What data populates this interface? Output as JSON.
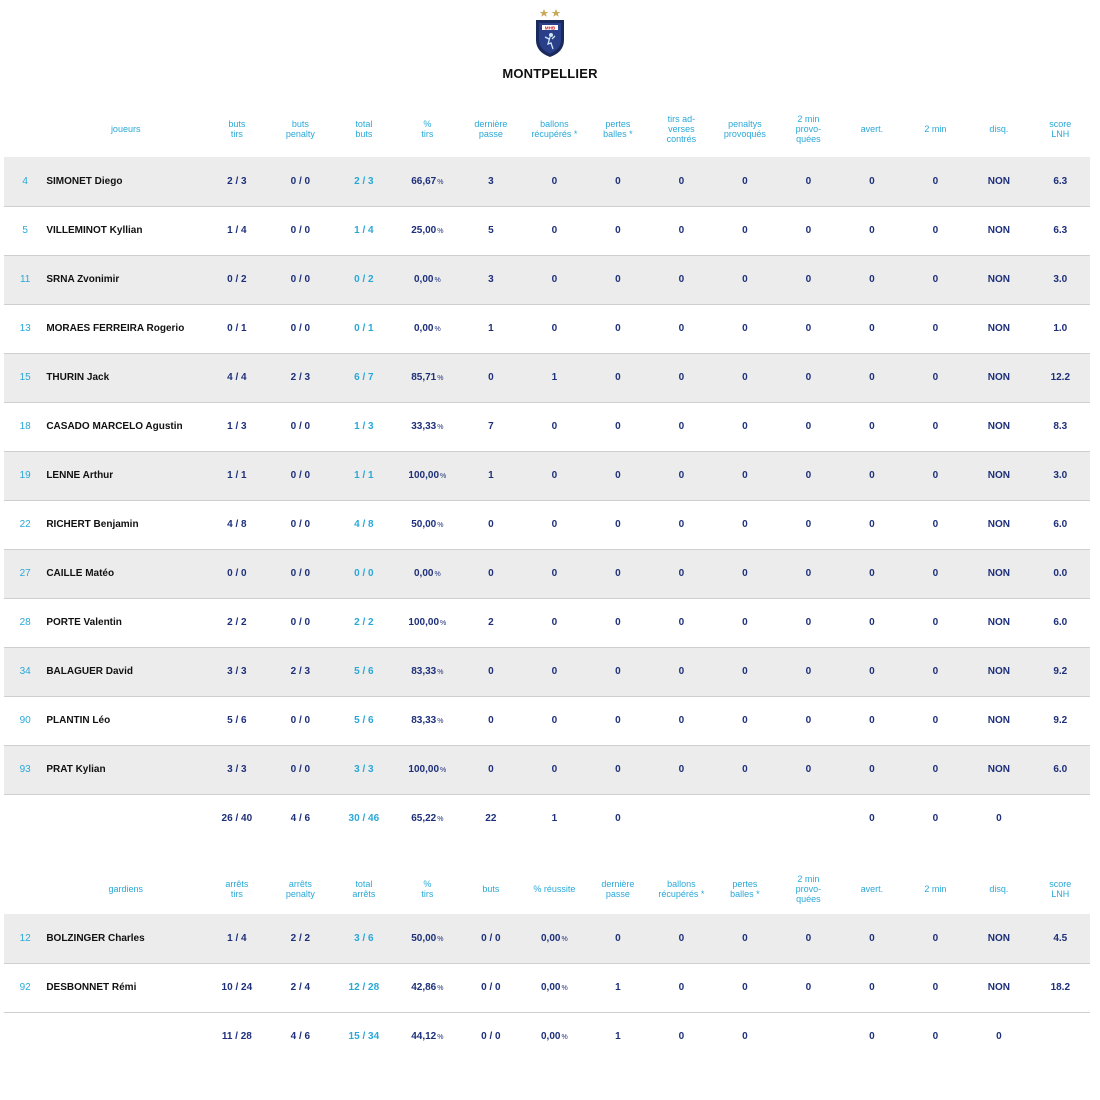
{
  "team": {
    "name": "MONTPELLIER",
    "logo_text": "MHB",
    "colors": {
      "navy": "#1b2a5c",
      "accent_blue": "#29a8d8",
      "row_alt": "#ececec",
      "star": "#c9a95c"
    }
  },
  "players": {
    "headers": [
      "joueurs",
      "buts\ntirs",
      "buts\npenalty",
      "total\nbuts",
      "%\ntirs",
      "dernière\npasse",
      "ballons\nrécupérés *",
      "pertes\nballes *",
      "tirs ad-\nverses\ncontrés",
      "penaltys\nprovoqués",
      "2 min\nprovo-\nquées",
      "avert.",
      "2 min",
      "disq.",
      "score\nLNH"
    ],
    "rows": [
      {
        "num": "4",
        "name": "SIMONET Diego",
        "buts_tirs": "2 / 3",
        "penalty": "0 / 0",
        "total": "2 / 3",
        "pct": "66,67",
        "dp": "3",
        "br": "0",
        "pb": "0",
        "tac": "0",
        "pp": "0",
        "mp": "0",
        "avert": "0",
        "two": "0",
        "disq": "NON",
        "score": "6.3"
      },
      {
        "num": "5",
        "name": "VILLEMINOT Kyllian",
        "buts_tirs": "1 / 4",
        "penalty": "0 / 0",
        "total": "1 / 4",
        "pct": "25,00",
        "dp": "5",
        "br": "0",
        "pb": "0",
        "tac": "0",
        "pp": "0",
        "mp": "0",
        "avert": "0",
        "two": "0",
        "disq": "NON",
        "score": "6.3"
      },
      {
        "num": "11",
        "name": "SRNA Zvonimir",
        "buts_tirs": "0 / 2",
        "penalty": "0 / 0",
        "total": "0 / 2",
        "pct": "0,00",
        "dp": "3",
        "br": "0",
        "pb": "0",
        "tac": "0",
        "pp": "0",
        "mp": "0",
        "avert": "0",
        "two": "0",
        "disq": "NON",
        "score": "3.0"
      },
      {
        "num": "13",
        "name": "MORAES FERREIRA Rogerio",
        "buts_tirs": "0 / 1",
        "penalty": "0 / 0",
        "total": "0 / 1",
        "pct": "0,00",
        "dp": "1",
        "br": "0",
        "pb": "0",
        "tac": "0",
        "pp": "0",
        "mp": "0",
        "avert": "0",
        "two": "0",
        "disq": "NON",
        "score": "1.0"
      },
      {
        "num": "15",
        "name": "THURIN Jack",
        "buts_tirs": "4 / 4",
        "penalty": "2 / 3",
        "total": "6 / 7",
        "pct": "85,71",
        "dp": "0",
        "br": "1",
        "pb": "0",
        "tac": "0",
        "pp": "0",
        "mp": "0",
        "avert": "0",
        "two": "0",
        "disq": "NON",
        "score": "12.2"
      },
      {
        "num": "18",
        "name": "CASADO MARCELO Agustin",
        "buts_tirs": "1 / 3",
        "penalty": "0 / 0",
        "total": "1 / 3",
        "pct": "33,33",
        "dp": "7",
        "br": "0",
        "pb": "0",
        "tac": "0",
        "pp": "0",
        "mp": "0",
        "avert": "0",
        "two": "0",
        "disq": "NON",
        "score": "8.3"
      },
      {
        "num": "19",
        "name": "LENNE Arthur",
        "buts_tirs": "1 / 1",
        "penalty": "0 / 0",
        "total": "1 / 1",
        "pct": "100,00",
        "dp": "1",
        "br": "0",
        "pb": "0",
        "tac": "0",
        "pp": "0",
        "mp": "0",
        "avert": "0",
        "two": "0",
        "disq": "NON",
        "score": "3.0"
      },
      {
        "num": "22",
        "name": "RICHERT Benjamin",
        "buts_tirs": "4 / 8",
        "penalty": "0 / 0",
        "total": "4 / 8",
        "pct": "50,00",
        "dp": "0",
        "br": "0",
        "pb": "0",
        "tac": "0",
        "pp": "0",
        "mp": "0",
        "avert": "0",
        "two": "0",
        "disq": "NON",
        "score": "6.0"
      },
      {
        "num": "27",
        "name": "CAILLE Matéo",
        "buts_tirs": "0 / 0",
        "penalty": "0 / 0",
        "total": "0 / 0",
        "pct": "0,00",
        "dp": "0",
        "br": "0",
        "pb": "0",
        "tac": "0",
        "pp": "0",
        "mp": "0",
        "avert": "0",
        "two": "0",
        "disq": "NON",
        "score": "0.0"
      },
      {
        "num": "28",
        "name": "PORTE Valentin",
        "buts_tirs": "2 / 2",
        "penalty": "0 / 0",
        "total": "2 / 2",
        "pct": "100,00",
        "dp": "2",
        "br": "0",
        "pb": "0",
        "tac": "0",
        "pp": "0",
        "mp": "0",
        "avert": "0",
        "two": "0",
        "disq": "NON",
        "score": "6.0"
      },
      {
        "num": "34",
        "name": "BALAGUER David",
        "buts_tirs": "3 / 3",
        "penalty": "2 / 3",
        "total": "5 / 6",
        "pct": "83,33",
        "dp": "0",
        "br": "0",
        "pb": "0",
        "tac": "0",
        "pp": "0",
        "mp": "0",
        "avert": "0",
        "two": "0",
        "disq": "NON",
        "score": "9.2"
      },
      {
        "num": "90",
        "name": "PLANTIN Léo",
        "buts_tirs": "5 / 6",
        "penalty": "0 / 0",
        "total": "5 / 6",
        "pct": "83,33",
        "dp": "0",
        "br": "0",
        "pb": "0",
        "tac": "0",
        "pp": "0",
        "mp": "0",
        "avert": "0",
        "two": "0",
        "disq": "NON",
        "score": "9.2"
      },
      {
        "num": "93",
        "name": "PRAT Kylian",
        "buts_tirs": "3 / 3",
        "penalty": "0 / 0",
        "total": "3 / 3",
        "pct": "100,00",
        "dp": "0",
        "br": "0",
        "pb": "0",
        "tac": "0",
        "pp": "0",
        "mp": "0",
        "avert": "0",
        "two": "0",
        "disq": "NON",
        "score": "6.0"
      }
    ],
    "totals": {
      "buts_tirs": "26 / 40",
      "penalty": "4 / 6",
      "total": "30 / 46",
      "pct": "65,22",
      "dp": "22",
      "br": "1",
      "pb": "0",
      "avert": "0",
      "two": "0",
      "disq": "0"
    }
  },
  "keepers": {
    "headers": [
      "gardiens",
      "arrêts\ntirs",
      "arrêts\npenalty",
      "total\narrêts",
      "%\ntirs",
      "buts",
      "% réussite",
      "dernière\npasse",
      "ballons\nrécupérés *",
      "pertes\nballes *",
      "2 min\nprovo-\nquées",
      "avert.",
      "2 min",
      "disq.",
      "score\nLNH"
    ],
    "rows": [
      {
        "num": "12",
        "name": "BOLZINGER Charles",
        "arrets_tirs": "1 / 4",
        "penalty": "2 / 2",
        "total": "3 / 6",
        "pct": "50,00",
        "buts": "0 / 0",
        "reussite": "0,00",
        "dp": "0",
        "br": "0",
        "pb": "0",
        "mp": "0",
        "avert": "0",
        "two": "0",
        "disq": "NON",
        "score": "4.5"
      },
      {
        "num": "92",
        "name": "DESBONNET Rémi",
        "arrets_tirs": "10 / 24",
        "penalty": "2 / 4",
        "total": "12 / 28",
        "pct": "42,86",
        "buts": "0 / 0",
        "reussite": "0,00",
        "dp": "1",
        "br": "0",
        "pb": "0",
        "mp": "0",
        "avert": "0",
        "two": "0",
        "disq": "NON",
        "score": "18.2"
      }
    ],
    "totals": {
      "arrets_tirs": "11 / 28",
      "penalty": "4 / 6",
      "total": "15 / 34",
      "pct": "44,12",
      "buts": "0 / 0",
      "reussite": "0,00",
      "dp": "1",
      "br": "0",
      "pb": "0",
      "avert": "0",
      "two": "0",
      "disq": "0"
    }
  },
  "pct_unit": "%"
}
